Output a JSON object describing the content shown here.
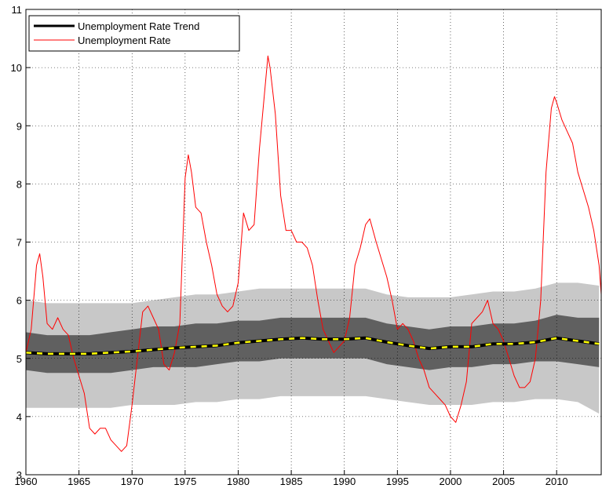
{
  "chart_data": {
    "type": "line",
    "xlim": [
      1960,
      2014.2
    ],
    "xticks": [
      1960,
      1965,
      1970,
      1975,
      1980,
      1985,
      1990,
      1995,
      2000,
      2005,
      2010
    ],
    "ylim": [
      3,
      11
    ],
    "yticks": [
      3,
      4,
      5,
      6,
      7,
      8,
      9,
      10,
      11
    ],
    "grid": true,
    "legend": "upper left",
    "bands": [
      {
        "color": "#c8c8c8",
        "x": [
          1960,
          1962,
          1964,
          1966,
          1968,
          1970,
          1972,
          1974,
          1976,
          1978,
          1980,
          1982,
          1984,
          1986,
          1988,
          1990,
          1992,
          1994,
          1996,
          1998,
          2000,
          2002,
          2004,
          2006,
          2008,
          2010,
          2012,
          2014
        ],
        "lower": [
          4.15,
          4.15,
          4.15,
          4.15,
          4.15,
          4.2,
          4.2,
          4.2,
          4.25,
          4.25,
          4.3,
          4.3,
          4.35,
          4.35,
          4.35,
          4.35,
          4.35,
          4.3,
          4.25,
          4.2,
          4.2,
          4.2,
          4.25,
          4.25,
          4.3,
          4.3,
          4.25,
          4.05
        ],
        "upper": [
          6.0,
          5.95,
          5.95,
          5.95,
          5.95,
          5.95,
          6.0,
          6.05,
          6.1,
          6.1,
          6.15,
          6.2,
          6.2,
          6.2,
          6.2,
          6.2,
          6.2,
          6.1,
          6.05,
          6.05,
          6.05,
          6.1,
          6.15,
          6.15,
          6.2,
          6.3,
          6.3,
          6.25
        ]
      },
      {
        "color": "#606060",
        "x": [
          1960,
          1962,
          1964,
          1966,
          1968,
          1970,
          1972,
          1974,
          1976,
          1978,
          1980,
          1982,
          1984,
          1986,
          1988,
          1990,
          1992,
          1994,
          1996,
          1998,
          2000,
          2002,
          2004,
          2006,
          2008,
          2010,
          2012,
          2014
        ],
        "lower": [
          4.8,
          4.75,
          4.75,
          4.75,
          4.75,
          4.8,
          4.85,
          4.85,
          4.85,
          4.9,
          4.95,
          4.95,
          5.0,
          5.0,
          5.0,
          5.0,
          5.0,
          4.9,
          4.85,
          4.8,
          4.85,
          4.85,
          4.9,
          4.9,
          4.95,
          4.95,
          4.9,
          4.85
        ],
        "upper": [
          5.45,
          5.4,
          5.4,
          5.4,
          5.45,
          5.5,
          5.55,
          5.55,
          5.6,
          5.6,
          5.65,
          5.65,
          5.7,
          5.7,
          5.7,
          5.7,
          5.7,
          5.6,
          5.55,
          5.5,
          5.55,
          5.55,
          5.6,
          5.6,
          5.65,
          5.75,
          5.7,
          5.7
        ]
      }
    ],
    "series": [
      {
        "name": "Unemployment Rate Trend",
        "color": "#000000",
        "dash_color": "#ffff00",
        "x": [
          1960,
          1962,
          1964,
          1966,
          1968,
          1970,
          1972,
          1974,
          1976,
          1978,
          1980,
          1982,
          1984,
          1986,
          1988,
          1990,
          1992,
          1994,
          1996,
          1998,
          2000,
          2002,
          2004,
          2006,
          2008,
          2010,
          2012,
          2014
        ],
        "values": [
          5.1,
          5.08,
          5.08,
          5.08,
          5.1,
          5.12,
          5.15,
          5.18,
          5.2,
          5.22,
          5.27,
          5.3,
          5.33,
          5.35,
          5.33,
          5.33,
          5.35,
          5.28,
          5.22,
          5.17,
          5.2,
          5.2,
          5.25,
          5.25,
          5.28,
          5.35,
          5.3,
          5.25
        ]
      },
      {
        "name": "Unemployment Rate",
        "color": "#ff0000",
        "x": [
          1960,
          1960.5,
          1961,
          1961.3,
          1961.6,
          1962,
          1962.5,
          1963,
          1963.5,
          1964,
          1964.5,
          1965,
          1965.5,
          1966,
          1966.5,
          1967,
          1967.5,
          1968,
          1968.5,
          1969,
          1969.5,
          1970,
          1970.5,
          1971,
          1971.5,
          1972,
          1972.5,
          1973,
          1973.5,
          1974,
          1974.5,
          1975,
          1975.3,
          1975.6,
          1976,
          1976.5,
          1977,
          1977.5,
          1978,
          1978.5,
          1979,
          1979.5,
          1980,
          1980.5,
          1981,
          1981.5,
          1982,
          1982.5,
          1982.8,
          1983,
          1983.5,
          1984,
          1984.5,
          1985,
          1985.5,
          1986,
          1986.5,
          1987,
          1987.5,
          1988,
          1988.5,
          1989,
          1989.5,
          1990,
          1990.5,
          1991,
          1991.5,
          1992,
          1992.4,
          1993,
          1993.5,
          1994,
          1994.5,
          1995,
          1995.5,
          1996,
          1996.5,
          1997,
          1997.5,
          1998,
          1998.5,
          1999,
          1999.5,
          2000,
          2000.5,
          2001,
          2001.5,
          2002,
          2002.5,
          2003,
          2003.5,
          2004,
          2004.5,
          2005,
          2005.5,
          2006,
          2006.5,
          2007,
          2007.5,
          2008,
          2008.5,
          2009,
          2009.5,
          2009.8,
          2010,
          2010.5,
          2011,
          2011.5,
          2012,
          2012.5,
          2013,
          2013.5,
          2014,
          2014.2
        ],
        "values": [
          5.1,
          5.5,
          6.6,
          6.8,
          6.4,
          5.6,
          5.5,
          5.7,
          5.5,
          5.4,
          5.0,
          4.7,
          4.4,
          3.8,
          3.7,
          3.8,
          3.8,
          3.6,
          3.5,
          3.4,
          3.5,
          4.2,
          5.0,
          5.8,
          5.9,
          5.7,
          5.5,
          4.9,
          4.8,
          5.1,
          5.6,
          8.1,
          8.5,
          8.2,
          7.6,
          7.5,
          7.0,
          6.6,
          6.1,
          5.9,
          5.8,
          5.9,
          6.3,
          7.5,
          7.2,
          7.3,
          8.6,
          9.6,
          10.2,
          10.0,
          9.2,
          7.8,
          7.2,
          7.2,
          7.0,
          7.0,
          6.9,
          6.6,
          6.0,
          5.5,
          5.3,
          5.1,
          5.2,
          5.3,
          5.7,
          6.6,
          6.9,
          7.3,
          7.4,
          7.0,
          6.7,
          6.4,
          6.0,
          5.5,
          5.6,
          5.5,
          5.3,
          5.0,
          4.8,
          4.5,
          4.4,
          4.3,
          4.2,
          4.0,
          3.9,
          4.2,
          4.6,
          5.6,
          5.7,
          5.8,
          6.0,
          5.6,
          5.5,
          5.3,
          5.0,
          4.7,
          4.5,
          4.5,
          4.6,
          5.0,
          6.0,
          8.2,
          9.3,
          9.5,
          9.4,
          9.1,
          8.9,
          8.7,
          8.2,
          7.9,
          7.6,
          7.2,
          6.6,
          6.1
        ]
      }
    ]
  }
}
